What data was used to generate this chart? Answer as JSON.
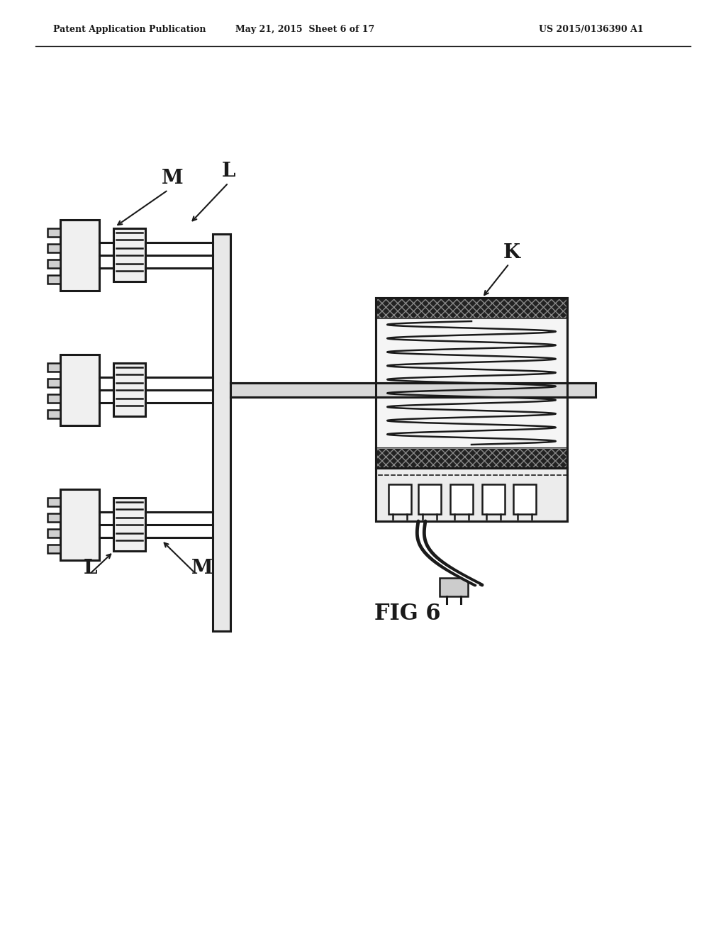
{
  "bg_color": "#ffffff",
  "line_color": "#1a1a1a",
  "header_left": "Patent Application Publication",
  "header_mid": "May 21, 2015  Sheet 6 of 17",
  "header_right": "US 2015/0136390 A1",
  "fig_label": "FIG 6",
  "label_K": "K",
  "label_L_top": "L",
  "label_M_top": "M",
  "label_L_bot": "L",
  "label_M_bot": "M"
}
